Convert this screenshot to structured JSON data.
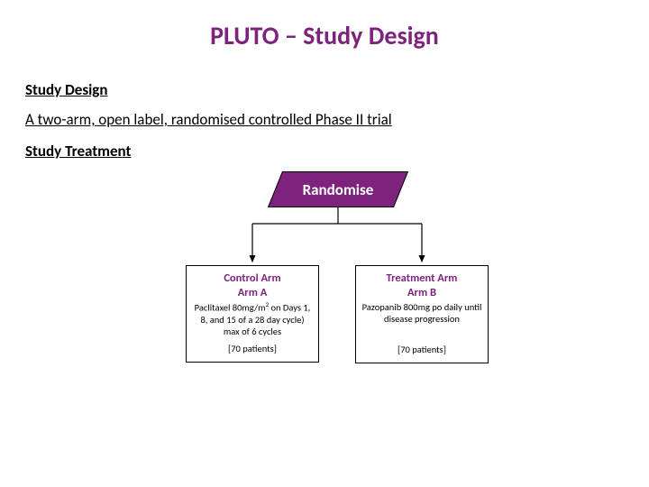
{
  "colors": {
    "accent": "#7d237d",
    "text": "#000000",
    "background": "#ffffff"
  },
  "title": "PLUTO – Study Design",
  "sections": {
    "design_heading": "Study Design",
    "design_text": "A two-arm, open label, randomised controlled Phase II trial",
    "treatment_heading": "Study Treatment"
  },
  "diagram": {
    "type": "flowchart",
    "randomise_label": "Randomise",
    "randomise_fill": "#7d237d",
    "randomise_text_color": "#ffffff",
    "connector_color": "#000000",
    "nodes": {
      "armA": {
        "title": "Control Arm",
        "subtitle": "Arm A",
        "body_html": "Paclitaxel 80mg/m<sup>2</sup> on Days 1, 8, and 15 of a 28 day cycle) max of 6 cycles",
        "patients": "[70 patients]"
      },
      "armB": {
        "title": "Treatment Arm",
        "subtitle": "Arm B",
        "body_html": "Pazopanib 800mg po daily until disease progression",
        "patients": "[70 patients]"
      }
    }
  }
}
